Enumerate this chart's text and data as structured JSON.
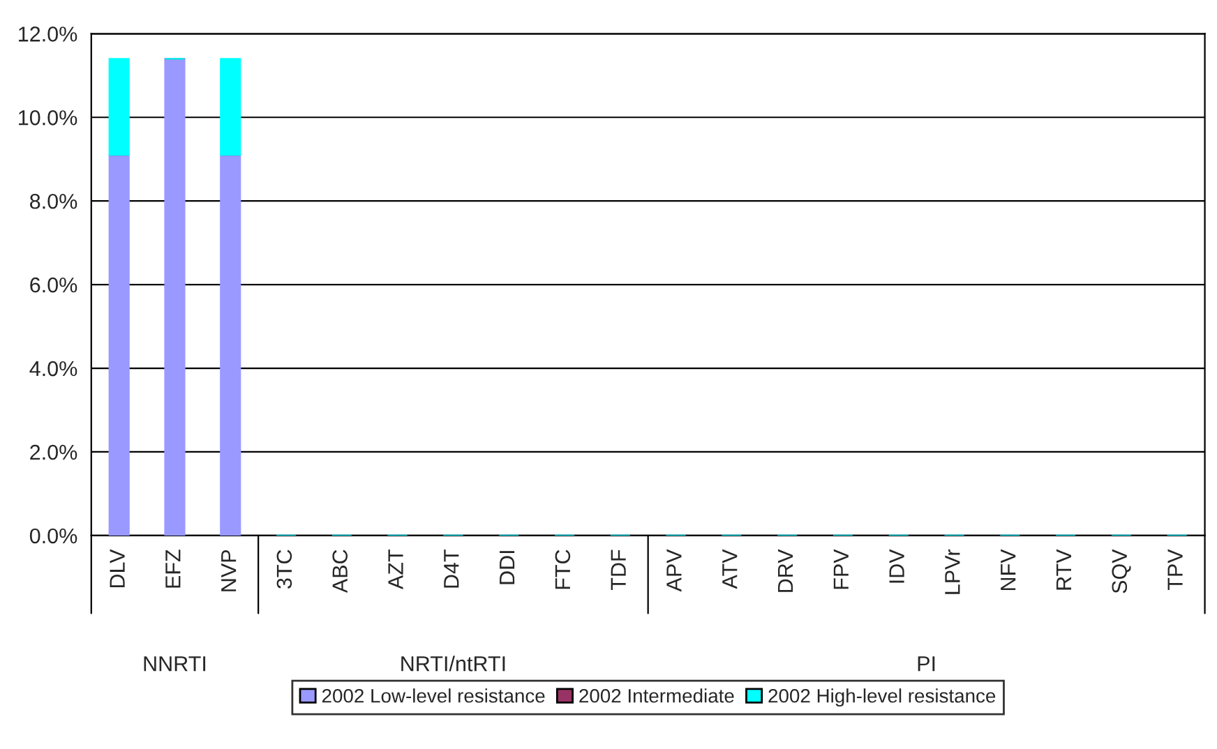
{
  "chart_data": {
    "type": "bar",
    "stacked": true,
    "categories": [
      "DLV",
      "EFZ",
      "NVP",
      "3TC",
      "ABC",
      "AZT",
      "D4T",
      "DDI",
      "FTC",
      "TDF",
      "APV",
      "ATV",
      "DRV",
      "FPV",
      "IDV",
      "LPVr",
      "NFV",
      "RTV",
      "SQV",
      "TPV"
    ],
    "series": [
      {
        "name": "2002 Low-level resistance",
        "color": "#9999ff",
        "values": [
          9.1,
          11.4,
          9.1,
          0,
          0,
          0,
          0,
          0,
          0,
          0,
          0,
          0,
          0,
          0,
          0,
          0,
          0,
          0,
          0,
          0
        ]
      },
      {
        "name": "2002 Intermediate",
        "color": "#993366",
        "values": [
          0,
          0,
          0,
          0,
          0,
          0,
          0,
          0,
          0,
          0,
          0,
          0,
          0,
          0,
          0,
          0,
          0,
          0,
          0,
          0
        ]
      },
      {
        "name": "2002 High-level resistance",
        "color": "#00ffff",
        "values": [
          2.3,
          0,
          2.3,
          0,
          0,
          0,
          0,
          0,
          0,
          0,
          0,
          0,
          0,
          0,
          0,
          0,
          0,
          0,
          0,
          0
        ]
      }
    ],
    "annotations": [
      "NNRTI",
      "NRTI/ntRTI",
      "PI"
    ],
    "ylim": [
      0,
      12
    ],
    "yticks": [
      {
        "value": 0,
        "label": "0.0%"
      },
      {
        "value": 2,
        "label": "2.0%"
      },
      {
        "value": 4,
        "label": "4.0%"
      },
      {
        "value": 6,
        "label": "6.0%"
      },
      {
        "value": 8,
        "label": "8.0%"
      },
      {
        "value": 10,
        "label": "10.0%"
      },
      {
        "value": 12,
        "label": "12.0%"
      }
    ],
    "grid": "y",
    "legend": "bottom"
  }
}
